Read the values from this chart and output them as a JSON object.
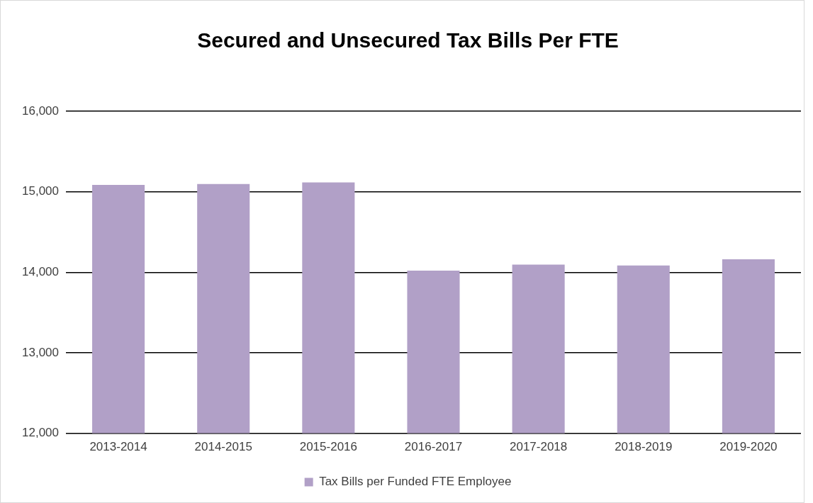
{
  "chart_data": {
    "type": "bar",
    "title": "Secured and Unsecured Tax Bills Per FTE",
    "categories": [
      "2013-2014",
      "2014-2015",
      "2015-2016",
      "2016-2017",
      "2017-2018",
      "2018-2019",
      "2019-2020"
    ],
    "series": [
      {
        "name": "Tax Bills per Funded FTE Employee",
        "color": "#b1a0c7",
        "values": [
          15085,
          15095,
          15115,
          14020,
          14095,
          14085,
          14160
        ]
      }
    ],
    "ylim": [
      12000,
      16000
    ],
    "yticks": [
      {
        "value": 12000,
        "label": "12,000"
      },
      {
        "value": 13000,
        "label": "13,000"
      },
      {
        "value": 14000,
        "label": "14,000"
      },
      {
        "value": 15000,
        "label": "15,000"
      },
      {
        "value": 16000,
        "label": "16,000"
      }
    ],
    "grid": "y",
    "legend": "bottom"
  }
}
